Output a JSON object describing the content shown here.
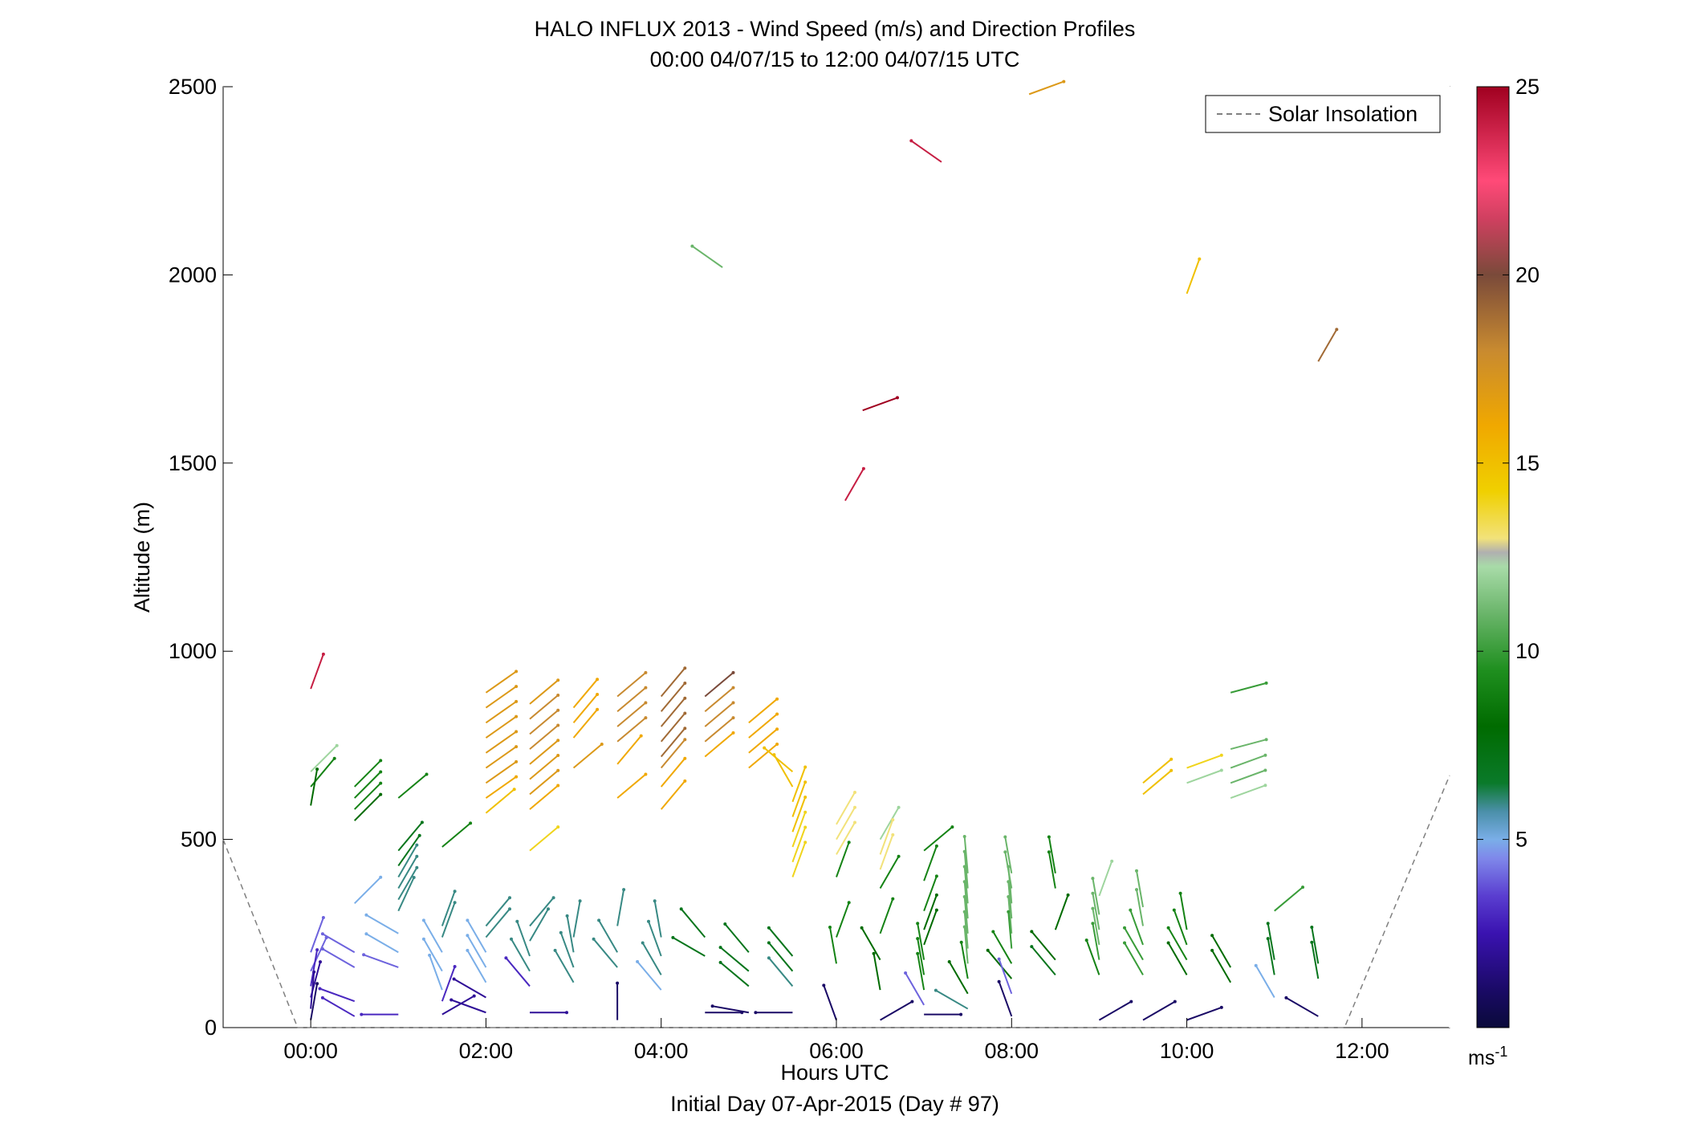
{
  "title": "HALO INFLUX 2013 - Wind Speed (m/s) and Direction Profiles",
  "subtitle": "00:00 04/07/15 to 12:00 04/07/15  UTC",
  "xlabel": "Hours UTC",
  "xlabel2": "Initial Day 07-Apr-2015 (Day # 97)",
  "ylabel": "Altitude (m)",
  "legend": {
    "label": "Solar Insolation",
    "color": "#808080",
    "placement": "top-right"
  },
  "colorbar": {
    "unit_main": "ms",
    "unit_exp": "-1",
    "ticks": [
      "5",
      "10",
      "15",
      "20",
      "25"
    ],
    "min": 0,
    "max": 25
  },
  "chart_data": {
    "type": "scatter",
    "xlim": [
      -1,
      13
    ],
    "ylim": [
      0,
      2500
    ],
    "xticks": [
      {
        "v": 0,
        "label": "00:00"
      },
      {
        "v": 2,
        "label": "02:00"
      },
      {
        "v": 4,
        "label": "04:00"
      },
      {
        "v": 6,
        "label": "06:00"
      },
      {
        "v": 8,
        "label": "08:00"
      },
      {
        "v": 10,
        "label": "10:00"
      },
      {
        "v": 12,
        "label": "12:00"
      }
    ],
    "yticks": [
      {
        "v": 0,
        "label": "0"
      },
      {
        "v": 500,
        "label": "500"
      },
      {
        "v": 1000,
        "label": "1000"
      },
      {
        "v": 1500,
        "label": "1500"
      },
      {
        "v": 2000,
        "label": "2000"
      },
      {
        "v": 2500,
        "label": "2500"
      }
    ],
    "solar_insolation": [
      [
        -1.0,
        500
      ],
      [
        -0.15,
        0
      ],
      [
        11.8,
        0
      ],
      [
        13.0,
        670
      ]
    ],
    "profiles": [
      {
        "t": 0.0,
        "z": [
          900,
          680,
          640,
          590,
          200,
          150,
          110,
          80,
          50,
          20
        ],
        "dir": [
          20,
          45,
          40,
          10,
          20,
          25,
          10,
          15,
          5,
          10
        ],
        "spd": [
          24,
          12,
          9,
          8,
          4,
          4,
          3,
          2,
          2,
          1
        ]
      },
      {
        "t": 0.5,
        "z": [
          640,
          610,
          580,
          550,
          330,
          200,
          160,
          70,
          30
        ],
        "dir": [
          45,
          45,
          45,
          45,
          45,
          300,
          300,
          290,
          300
        ],
        "spd": [
          9,
          9,
          9,
          8,
          5,
          4,
          4,
          3,
          3
        ]
      },
      {
        "t": 1.0,
        "z": [
          610,
          470,
          430,
          400,
          370,
          340,
          310,
          250,
          200,
          160,
          35
        ],
        "dir": [
          50,
          40,
          35,
          30,
          30,
          30,
          25,
          300,
          300,
          290,
          270
        ],
        "spd": [
          9,
          7,
          7,
          6,
          6,
          6,
          6,
          5,
          5,
          4,
          3
        ]
      },
      {
        "t": 1.5,
        "z": [
          480,
          270,
          240,
          200,
          150,
          100,
          70,
          35
        ],
        "dir": [
          50,
          20,
          20,
          330,
          330,
          340,
          20,
          60
        ],
        "spd": [
          9,
          6,
          6,
          5,
          5,
          5,
          3,
          2
        ]
      },
      {
        "t": 2.0,
        "z": [
          890,
          850,
          810,
          770,
          730,
          690,
          650,
          610,
          570,
          270,
          240,
          200,
          160,
          120,
          80,
          40
        ],
        "dir": [
          55,
          55,
          55,
          55,
          55,
          55,
          55,
          55,
          50,
          40,
          40,
          330,
          330,
          330,
          300,
          290
        ],
        "spd": [
          17,
          17,
          17,
          17,
          17,
          17,
          17,
          16,
          15,
          6,
          6,
          5,
          5,
          5,
          2,
          2
        ]
      },
      {
        "t": 2.5,
        "z": [
          860,
          820,
          780,
          740,
          700,
          660,
          620,
          580,
          470,
          270,
          230,
          190,
          150,
          110,
          40
        ],
        "dir": [
          50,
          50,
          50,
          50,
          50,
          50,
          50,
          50,
          50,
          40,
          30,
          340,
          330,
          320,
          90
        ],
        "spd": [
          17,
          18,
          18,
          18,
          17,
          17,
          17,
          16,
          14,
          6,
          6,
          6,
          6,
          3,
          2
        ]
      },
      {
        "t": 3.0,
        "z": [
          850,
          810,
          770,
          690,
          240,
          200,
          160,
          120
        ],
        "dir": [
          40,
          40,
          40,
          50,
          10,
          350,
          340,
          330
        ],
        "spd": [
          16,
          16,
          16,
          17,
          6,
          6,
          6,
          6
        ]
      },
      {
        "t": 3.5,
        "z": [
          880,
          840,
          800,
          760,
          700,
          610,
          270,
          200,
          160,
          20
        ],
        "dir": [
          50,
          50,
          50,
          50,
          40,
          50,
          10,
          330,
          320,
          360
        ],
        "spd": [
          18,
          18,
          18,
          18,
          16,
          16,
          6,
          6,
          6,
          1
        ]
      },
      {
        "t": 4.0,
        "z": [
          880,
          840,
          800,
          760,
          720,
          690,
          640,
          580,
          240,
          190,
          140,
          100
        ],
        "dir": [
          40,
          40,
          40,
          40,
          40,
          40,
          40,
          40,
          350,
          340,
          330,
          320
        ],
        "spd": [
          19,
          19,
          19,
          19,
          19,
          18,
          16,
          16,
          6,
          6,
          6,
          5
        ]
      },
      {
        "t": 4.5,
        "z": [
          880,
          840,
          800,
          760,
          720,
          240,
          190,
          40
        ],
        "dir": [
          50,
          50,
          50,
          50,
          50,
          320,
          300,
          90
        ],
        "spd": [
          20,
          18,
          18,
          18,
          16,
          7,
          7,
          1
        ]
      },
      {
        "t": 5.0,
        "z": [
          810,
          770,
          730,
          690,
          200,
          150,
          110,
          40
        ],
        "dir": [
          50,
          50,
          50,
          50,
          320,
          310,
          310,
          280
        ],
        "spd": [
          16,
          16,
          16,
          16,
          7,
          7,
          7,
          1
        ]
      },
      {
        "t": 5.5,
        "z": [
          680,
          640,
          600,
          560,
          520,
          480,
          440,
          400,
          190,
          150,
          110,
          40
        ],
        "dir": [
          310,
          330,
          20,
          20,
          20,
          20,
          20,
          20,
          320,
          320,
          320,
          270
        ],
        "spd": [
          15,
          15,
          15,
          15,
          15,
          14,
          14,
          14,
          7,
          7,
          6,
          1
        ]
      },
      {
        "t": 6.0,
        "z": [
          540,
          500,
          460,
          400,
          240,
          170,
          20
        ],
        "dir": [
          30,
          30,
          30,
          20,
          20,
          350,
          340
        ],
        "spd": [
          13,
          13,
          13,
          9,
          9,
          9,
          1
        ]
      },
      {
        "t": 6.5,
        "z": [
          500,
          460,
          420,
          370,
          250,
          180,
          100,
          20
        ],
        "dir": [
          30,
          20,
          20,
          30,
          20,
          330,
          350,
          60
        ],
        "spd": [
          12,
          13,
          13,
          9,
          9,
          8,
          8,
          1
        ]
      },
      {
        "t": 7.0,
        "z": [
          470,
          390,
          310,
          260,
          220,
          180,
          140,
          100,
          60,
          35
        ],
        "dir": [
          50,
          20,
          20,
          20,
          20,
          350,
          350,
          350,
          330,
          90
        ],
        "spd": [
          9,
          9,
          9,
          8,
          8,
          9,
          9,
          9,
          4,
          1
        ]
      },
      {
        "t": 7.5,
        "z": [
          410,
          370,
          330,
          290,
          250,
          210,
          170,
          130,
          90,
          50
        ],
        "dir": [
          355,
          355,
          355,
          355,
          355,
          355,
          355,
          350,
          330,
          300
        ],
        "spd": [
          11,
          11,
          11,
          11,
          11,
          11,
          11,
          9,
          8,
          6
        ]
      },
      {
        "t": 8.0,
        "z": [
          410,
          370,
          330,
          290,
          250,
          210,
          170,
          130,
          90,
          30
        ],
        "dir": [
          350,
          350,
          355,
          355,
          355,
          355,
          330,
          320,
          340,
          340
        ],
        "spd": [
          11,
          11,
          11,
          11,
          11,
          10,
          9,
          8,
          4,
          1
        ]
      },
      {
        "t": 8.5,
        "z": [
          410,
          370,
          260,
          180,
          140
        ],
        "dir": [
          350,
          350,
          20,
          320,
          320
        ],
        "spd": [
          9,
          9,
          8,
          8,
          7
        ]
      },
      {
        "t": 9.0,
        "z": [
          350,
          300,
          260,
          220,
          180,
          140,
          20
        ],
        "dir": [
          20,
          350,
          350,
          350,
          350,
          340,
          60
        ],
        "spd": [
          12,
          11,
          11,
          11,
          10,
          9,
          1
        ]
      },
      {
        "t": 9.5,
        "z": [
          650,
          620,
          320,
          270,
          220,
          180,
          140,
          20
        ],
        "dir": [
          50,
          50,
          350,
          350,
          340,
          330,
          330,
          60
        ],
        "spd": [
          15,
          15,
          11,
          11,
          10,
          10,
          10,
          1
        ]
      },
      {
        "t": 10.0,
        "z": [
          1950,
          690,
          650,
          260,
          220,
          180,
          140,
          20
        ],
        "dir": [
          20,
          70,
          70,
          350,
          340,
          330,
          330,
          70
        ],
        "spd": [
          15,
          14,
          12,
          9,
          9,
          9,
          8,
          1
        ]
      },
      {
        "t": 10.5,
        "z": [
          890,
          740,
          690,
          650,
          610,
          160,
          120
        ],
        "dir": [
          75,
          75,
          70,
          70,
          70,
          330,
          330
        ],
        "spd": [
          10,
          11,
          11,
          11,
          12,
          8,
          8
        ]
      },
      {
        "t": 11.0,
        "z": [
          310,
          180,
          140,
          80
        ],
        "dir": [
          50,
          350,
          350,
          330
        ],
        "spd": [
          10,
          7,
          7,
          5
        ]
      },
      {
        "t": 11.5,
        "z": [
          1770,
          170,
          130,
          30
        ],
        "dir": [
          30,
          350,
          350,
          300
        ],
        "spd": [
          19,
          7,
          7,
          1
        ]
      }
    ],
    "upper_barbs": [
      {
        "t": 4.7,
        "z": 2020,
        "dir": 305,
        "spd": 11
      },
      {
        "t": 7.2,
        "z": 2300,
        "dir": 305,
        "spd": 24
      },
      {
        "t": 8.2,
        "z": 2480,
        "dir": 70,
        "spd": 17
      },
      {
        "t": 6.3,
        "z": 1640,
        "dir": 70,
        "spd": 25
      },
      {
        "t": 6.1,
        "z": 1400,
        "dir": 30,
        "spd": 24
      }
    ]
  }
}
